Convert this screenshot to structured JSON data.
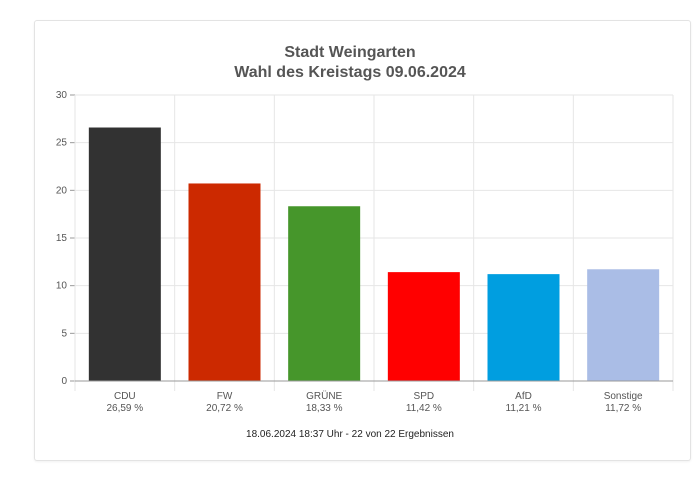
{
  "chart_data": {
    "type": "bar",
    "title": "Stadt Weingarten",
    "subtitle": "Wahl des Kreistags 09.06.2024",
    "categories": [
      "CDU",
      "FW",
      "GRÜNE",
      "SPD",
      "AfD",
      "Sonstige"
    ],
    "values": [
      26.59,
      20.72,
      18.33,
      11.42,
      11.21,
      11.72
    ],
    "value_labels": [
      "26,59 %",
      "20,72 %",
      "18,33 %",
      "11,42 %",
      "11,21 %",
      "11,72 %"
    ],
    "colors": [
      "#323232",
      "#cc2900",
      "#46962b",
      "#ff0000",
      "#009ee0",
      "#aabde6"
    ],
    "ylim": [
      0,
      30
    ],
    "yticks": [
      0,
      5,
      10,
      15,
      20,
      25,
      30
    ],
    "grid": true,
    "xlabel": "",
    "ylabel": "",
    "footer": "18.06.2024 18:37 Uhr - 22 von 22 Ergebnissen"
  }
}
